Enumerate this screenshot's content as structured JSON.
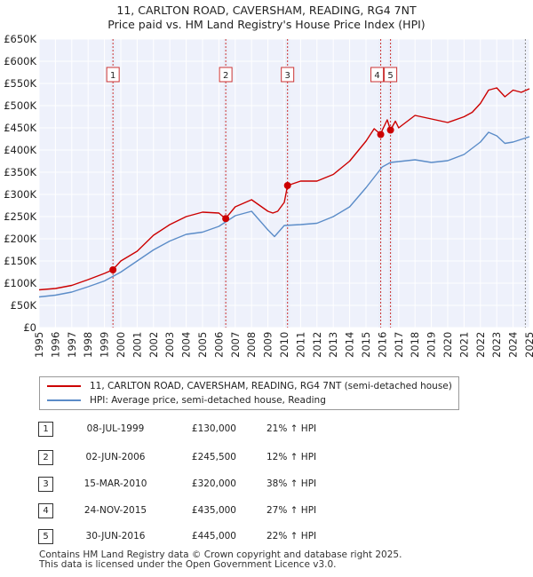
{
  "header": {
    "title": "11, CARLTON ROAD, CAVERSHAM, READING, RG4 7NT",
    "subtitle": "Price paid vs. HM Land Registry's House Price Index (HPI)"
  },
  "colors": {
    "property": "#cc0000",
    "hpi": "#5b8cc8",
    "band": "#e8ecf8",
    "grid": "#ffffff"
  },
  "chart_data": {
    "type": "line",
    "x_min": 1995.0,
    "x_max": 2025.0,
    "ylim": [
      0,
      650000
    ],
    "y_ticks": [
      {
        "v": 0,
        "label": "£0"
      },
      {
        "v": 50000,
        "label": "£50K"
      },
      {
        "v": 100000,
        "label": "£100K"
      },
      {
        "v": 150000,
        "label": "£150K"
      },
      {
        "v": 200000,
        "label": "£200K"
      },
      {
        "v": 250000,
        "label": "£250K"
      },
      {
        "v": 300000,
        "label": "£300K"
      },
      {
        "v": 350000,
        "label": "£350K"
      },
      {
        "v": 400000,
        "label": "£400K"
      },
      {
        "v": 450000,
        "label": "£450K"
      },
      {
        "v": 500000,
        "label": "£500K"
      },
      {
        "v": 550000,
        "label": "£550K"
      },
      {
        "v": 600000,
        "label": "£600K"
      },
      {
        "v": 650000,
        "label": "£650K"
      }
    ],
    "x_ticks": [
      "1995",
      "1996",
      "1997",
      "1998",
      "1999",
      "2000",
      "2001",
      "2002",
      "2003",
      "2004",
      "2005",
      "2006",
      "2007",
      "2008",
      "2009",
      "2010",
      "2011",
      "2012",
      "2013",
      "2014",
      "2015",
      "2016",
      "2017",
      "2018",
      "2019",
      "2020",
      "2021",
      "2022",
      "2023",
      "2024",
      "2025"
    ],
    "series": [
      {
        "name": "11, CARLTON ROAD, CAVERSHAM, READING, RG4 7NT (semi-detached house)",
        "color": "#cc0000",
        "x": [
          1995.0,
          1996.0,
          1997.0,
          1998.0,
          1999.0,
          1999.5,
          2000.0,
          2001.0,
          2002.0,
          2003.0,
          2004.0,
          2005.0,
          2006.0,
          2006.4,
          2007.0,
          2008.0,
          2009.0,
          2009.3,
          2009.6,
          2010.0,
          2010.2,
          2011.0,
          2012.0,
          2013.0,
          2014.0,
          2015.0,
          2015.5,
          2015.9,
          2016.0,
          2016.3,
          2016.5,
          2016.8,
          2017.0,
          2018.0,
          2019.0,
          2020.0,
          2021.0,
          2021.5,
          2022.0,
          2022.5,
          2023.0,
          2023.5,
          2024.0,
          2024.5,
          2025.0
        ],
        "y": [
          85000,
          88000,
          95000,
          108000,
          122000,
          130000,
          150000,
          172000,
          208000,
          232000,
          250000,
          260000,
          258000,
          245500,
          272000,
          288000,
          262000,
          258000,
          262000,
          282000,
          320000,
          330000,
          330000,
          345000,
          375000,
          420000,
          448000,
          435000,
          445000,
          468000,
          445000,
          465000,
          450000,
          478000,
          470000,
          462000,
          475000,
          485000,
          505000,
          535000,
          540000,
          520000,
          535000,
          530000,
          538000
        ]
      },
      {
        "name": "HPI: Average price, semi-detached house, Reading",
        "color": "#5b8cc8",
        "x": [
          1995.0,
          1996.0,
          1997.0,
          1998.0,
          1999.0,
          2000.0,
          2001.0,
          2002.0,
          2003.0,
          2004.0,
          2005.0,
          2006.0,
          2007.0,
          2008.0,
          2009.0,
          2009.4,
          2010.0,
          2011.0,
          2012.0,
          2013.0,
          2014.0,
          2015.0,
          2016.0,
          2016.5,
          2017.0,
          2018.0,
          2019.0,
          2020.0,
          2021.0,
          2022.0,
          2022.5,
          2023.0,
          2023.5,
          2024.0,
          2025.0
        ],
        "y": [
          69000,
          73000,
          80000,
          92000,
          105000,
          125000,
          150000,
          175000,
          195000,
          210000,
          215000,
          228000,
          252000,
          262000,
          220000,
          205000,
          230000,
          232000,
          235000,
          250000,
          272000,
          315000,
          362000,
          372000,
          374000,
          378000,
          372000,
          376000,
          390000,
          418000,
          440000,
          432000,
          415000,
          418000,
          430000
        ]
      }
    ],
    "transactions": [
      {
        "num": "1",
        "date": "08-JUL-1999",
        "price": "£130,000",
        "hpi": "21% ↑ HPI",
        "x": 1999.52,
        "y": 130000
      },
      {
        "num": "2",
        "date": "02-JUN-2006",
        "price": "£245,500",
        "hpi": "12% ↑ HPI",
        "x": 2006.42,
        "y": 245500
      },
      {
        "num": "3",
        "date": "15-MAR-2010",
        "price": "£320,000",
        "hpi": "38% ↑ HPI",
        "x": 2010.2,
        "y": 320000
      },
      {
        "num": "4",
        "date": "24-NOV-2015",
        "price": "£435,000",
        "hpi": "27% ↑ HPI",
        "x": 2015.9,
        "y": 435000
      },
      {
        "num": "5",
        "date": "30-JUN-2016",
        "price": "£445,000",
        "hpi": "22% ↑ HPI",
        "x": 2016.5,
        "y": 445000
      }
    ]
  },
  "legend": {
    "property_label": "11, CARLTON ROAD, CAVERSHAM, READING, RG4 7NT (semi-detached house)",
    "hpi_label": "HPI: Average price, semi-detached house, Reading"
  },
  "footer": {
    "line1": "Contains HM Land Registry data © Crown copyright and database right 2025.",
    "line2": "This data is licensed under the Open Government Licence v3.0."
  }
}
